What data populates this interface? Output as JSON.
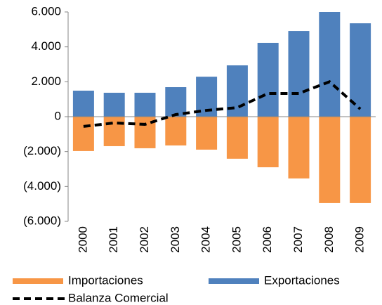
{
  "chart_data": {
    "type": "bar",
    "categories": [
      "2000",
      "2001",
      "2002",
      "2003",
      "2004",
      "2005",
      "2006",
      "2007",
      "2008",
      "2009"
    ],
    "series": [
      {
        "name": "Importaciones",
        "color": "#f79646",
        "values": [
          -1970,
          -1690,
          -1810,
          -1650,
          -1890,
          -2410,
          -2900,
          -3540,
          -4950,
          -4950
        ]
      },
      {
        "name": "Exportaciones",
        "color": "#4f81bd",
        "values": [
          1490,
          1370,
          1370,
          1690,
          2290,
          2940,
          4230,
          4910,
          6000,
          5350
        ]
      },
      {
        "name": "Balanza Comercial",
        "color": "#000000",
        "type": "line",
        "dashed": true,
        "values": [
          -560,
          -360,
          -440,
          120,
          360,
          520,
          1330,
          1330,
          2000,
          440
        ]
      }
    ],
    "ylim": [
      -6000,
      6000
    ],
    "yticks": [
      {
        "value": 6000,
        "label": "6.000"
      },
      {
        "value": 4000,
        "label": "4.000"
      },
      {
        "value": 2000,
        "label": "2.000"
      },
      0,
      {
        "value": -2000,
        "label": "(2.000)"
      },
      {
        "value": -4000,
        "label": "(4.000)"
      },
      {
        "value": -6000,
        "label": "(6.000)"
      }
    ],
    "grid": false
  }
}
